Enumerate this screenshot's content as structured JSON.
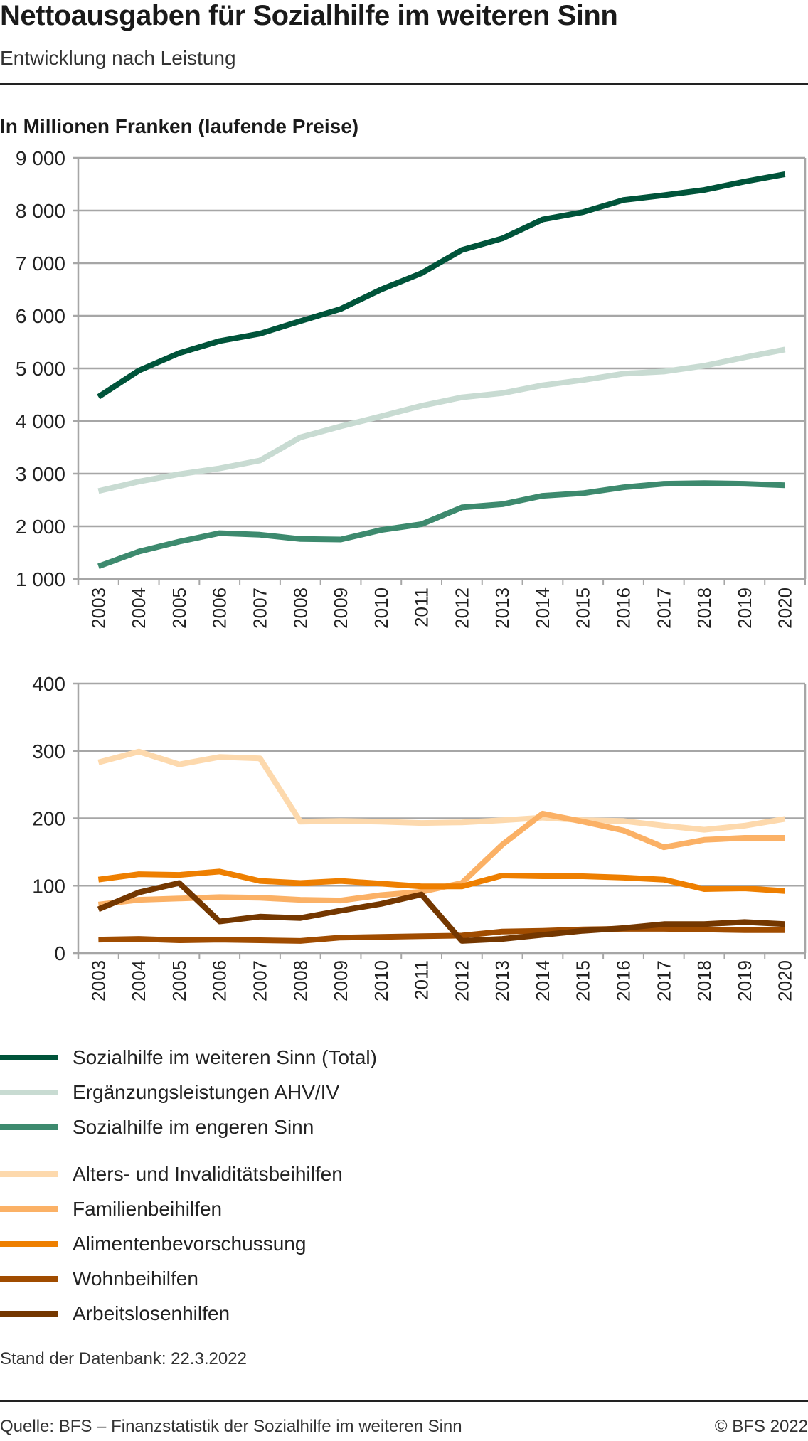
{
  "header": {
    "title": "Nettoausgaben für Sozialhilfe im weiteren Sinn",
    "subtitle": "Entwicklung nach Leistung",
    "unit_label": "In Millionen Franken (laufende Preise)"
  },
  "chart_data": [
    {
      "type": "line",
      "title": "Nettoausgaben für Sozialhilfe im weiteren Sinn",
      "ylabel": "In Millionen Franken (laufende Preise)",
      "xlabel": "",
      "x": [
        "2003",
        "2004",
        "2005",
        "2006",
        "2007",
        "2008",
        "2009",
        "2010",
        "2011",
        "2012",
        "2013",
        "2014",
        "2015",
        "2016",
        "2017",
        "2018",
        "2019",
        "2020"
      ],
      "ylim": [
        1000,
        9000
      ],
      "yticks": [
        1000,
        2000,
        3000,
        4000,
        5000,
        6000,
        7000,
        8000,
        9000
      ],
      "ytick_labels": [
        "1 000",
        "2 000",
        "3 000",
        "4 000",
        "5 000",
        "6 000",
        "7 000",
        "8 000",
        "9 000"
      ],
      "grid": true,
      "series": [
        {
          "name": "Sozialhilfe im weiteren Sinn (Total)",
          "color": "#00543a",
          "values": [
            4460,
            4960,
            5290,
            5520,
            5660,
            5900,
            6130,
            6500,
            6810,
            7250,
            7470,
            7830,
            7970,
            8200,
            8290,
            8390,
            8550,
            8690
          ]
        },
        {
          "name": "Ergänzungsleistungen AHV/IV",
          "color": "#c8dbd2",
          "values": [
            2670,
            2850,
            2990,
            3100,
            3250,
            3690,
            3900,
            4090,
            4290,
            4450,
            4530,
            4680,
            4780,
            4900,
            4940,
            5050,
            5210,
            5360
          ]
        },
        {
          "name": "Sozialhilfe im engeren Sinn",
          "color": "#3d8a6e",
          "values": [
            1240,
            1520,
            1710,
            1870,
            1840,
            1760,
            1750,
            1930,
            2040,
            2360,
            2420,
            2580,
            2630,
            2740,
            2810,
            2820,
            2810,
            2780
          ]
        }
      ]
    },
    {
      "type": "line",
      "title": "",
      "ylabel": "In Millionen Franken (laufende Preise)",
      "xlabel": "",
      "x": [
        "2003",
        "2004",
        "2005",
        "2006",
        "2007",
        "2008",
        "2009",
        "2010",
        "2011",
        "2012",
        "2013",
        "2014",
        "2015",
        "2016",
        "2017",
        "2018",
        "2019",
        "2020"
      ],
      "ylim": [
        0,
        400
      ],
      "yticks": [
        0,
        100,
        200,
        300,
        400
      ],
      "ytick_labels": [
        "0",
        "100",
        "200",
        "300",
        "400"
      ],
      "grid": true,
      "series": [
        {
          "name": "Alters- und Invaliditätsbeihilfen",
          "color": "#fdd9ad",
          "values": [
            283,
            299,
            280,
            291,
            289,
            195,
            196,
            195,
            193,
            194,
            197,
            201,
            197,
            196,
            189,
            183,
            189,
            199
          ]
        },
        {
          "name": "Familienbeihilfen",
          "color": "#fbb166",
          "values": [
            72,
            79,
            81,
            83,
            82,
            79,
            78,
            86,
            91,
            104,
            161,
            207,
            195,
            182,
            157,
            168,
            171,
            171
          ]
        },
        {
          "name": "Alimentenbevorschussung",
          "color": "#ee7f00",
          "values": [
            109,
            117,
            116,
            121,
            107,
            104,
            107,
            103,
            99,
            99,
            115,
            114,
            114,
            112,
            109,
            95,
            96,
            92
          ]
        },
        {
          "name": "Wohnbeihilfen",
          "color": "#a04c00",
          "values": [
            20,
            21,
            19,
            20,
            19,
            18,
            23,
            24,
            25,
            26,
            32,
            33,
            35,
            36,
            36,
            35,
            34,
            34
          ]
        },
        {
          "name": "Arbeitslosenhilfen",
          "color": "#743700",
          "values": [
            65,
            90,
            104,
            47,
            54,
            52,
            63,
            73,
            87,
            18,
            21,
            27,
            33,
            37,
            43,
            43,
            46,
            43
          ]
        }
      ]
    }
  ],
  "legend": {
    "placement": "bottom-left",
    "items": [
      {
        "label": "Sozialhilfe im weiteren Sinn (Total)",
        "color": "#00543a"
      },
      {
        "label": "Ergänzungsleistungen AHV/IV",
        "color": "#c8dbd2"
      },
      {
        "label": "Sozialhilfe im engeren Sinn",
        "color": "#3d8a6e"
      },
      {
        "label": "Alters- und Invaliditätsbeihilfen",
        "color": "#fdd9ad"
      },
      {
        "label": "Familienbeihilfen",
        "color": "#fbb166"
      },
      {
        "label": "Alimentenbevorschussung",
        "color": "#ee7f00"
      },
      {
        "label": "Wohnbeihilfen",
        "color": "#a04c00"
      },
      {
        "label": "Arbeitslosenhilfen",
        "color": "#743700"
      }
    ]
  },
  "footer": {
    "stand": "Stand der Datenbank: 22.3.2022",
    "source": "Quelle: BFS – Finanzstatistik der Sozialhilfe im weiteren Sinn",
    "copyright": "© BFS 2022"
  }
}
